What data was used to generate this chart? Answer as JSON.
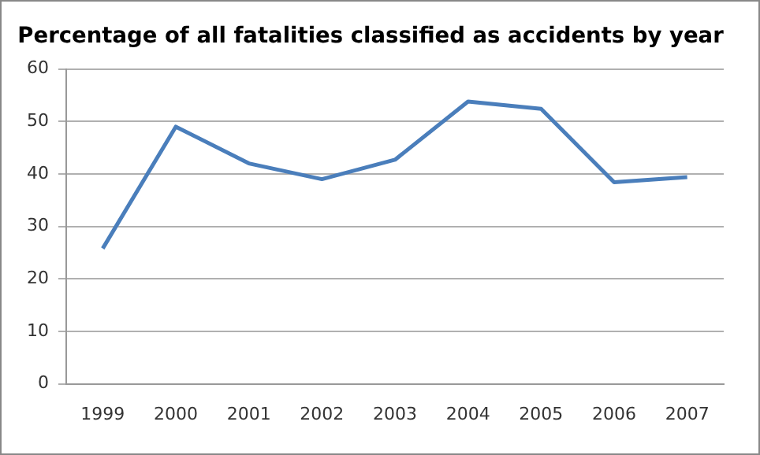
{
  "chart_data": {
    "type": "line",
    "title": "Percentage of all fatalities classified as accidents by year",
    "categories": [
      "1999",
      "2000",
      "2001",
      "2002",
      "2003",
      "2004",
      "2005",
      "2006",
      "2007"
    ],
    "series": [
      {
        "color": "#4a7ebb",
        "values": [
          25.8,
          49,
          42,
          39,
          42.7,
          53.8,
          52.4,
          38.4,
          39.4
        ]
      }
    ],
    "ylim": [
      0,
      60
    ],
    "yticks": [
      0,
      10,
      20,
      30,
      40,
      50,
      60
    ],
    "grid": "y",
    "legend": false,
    "marker": "none",
    "line_style": "solid"
  }
}
